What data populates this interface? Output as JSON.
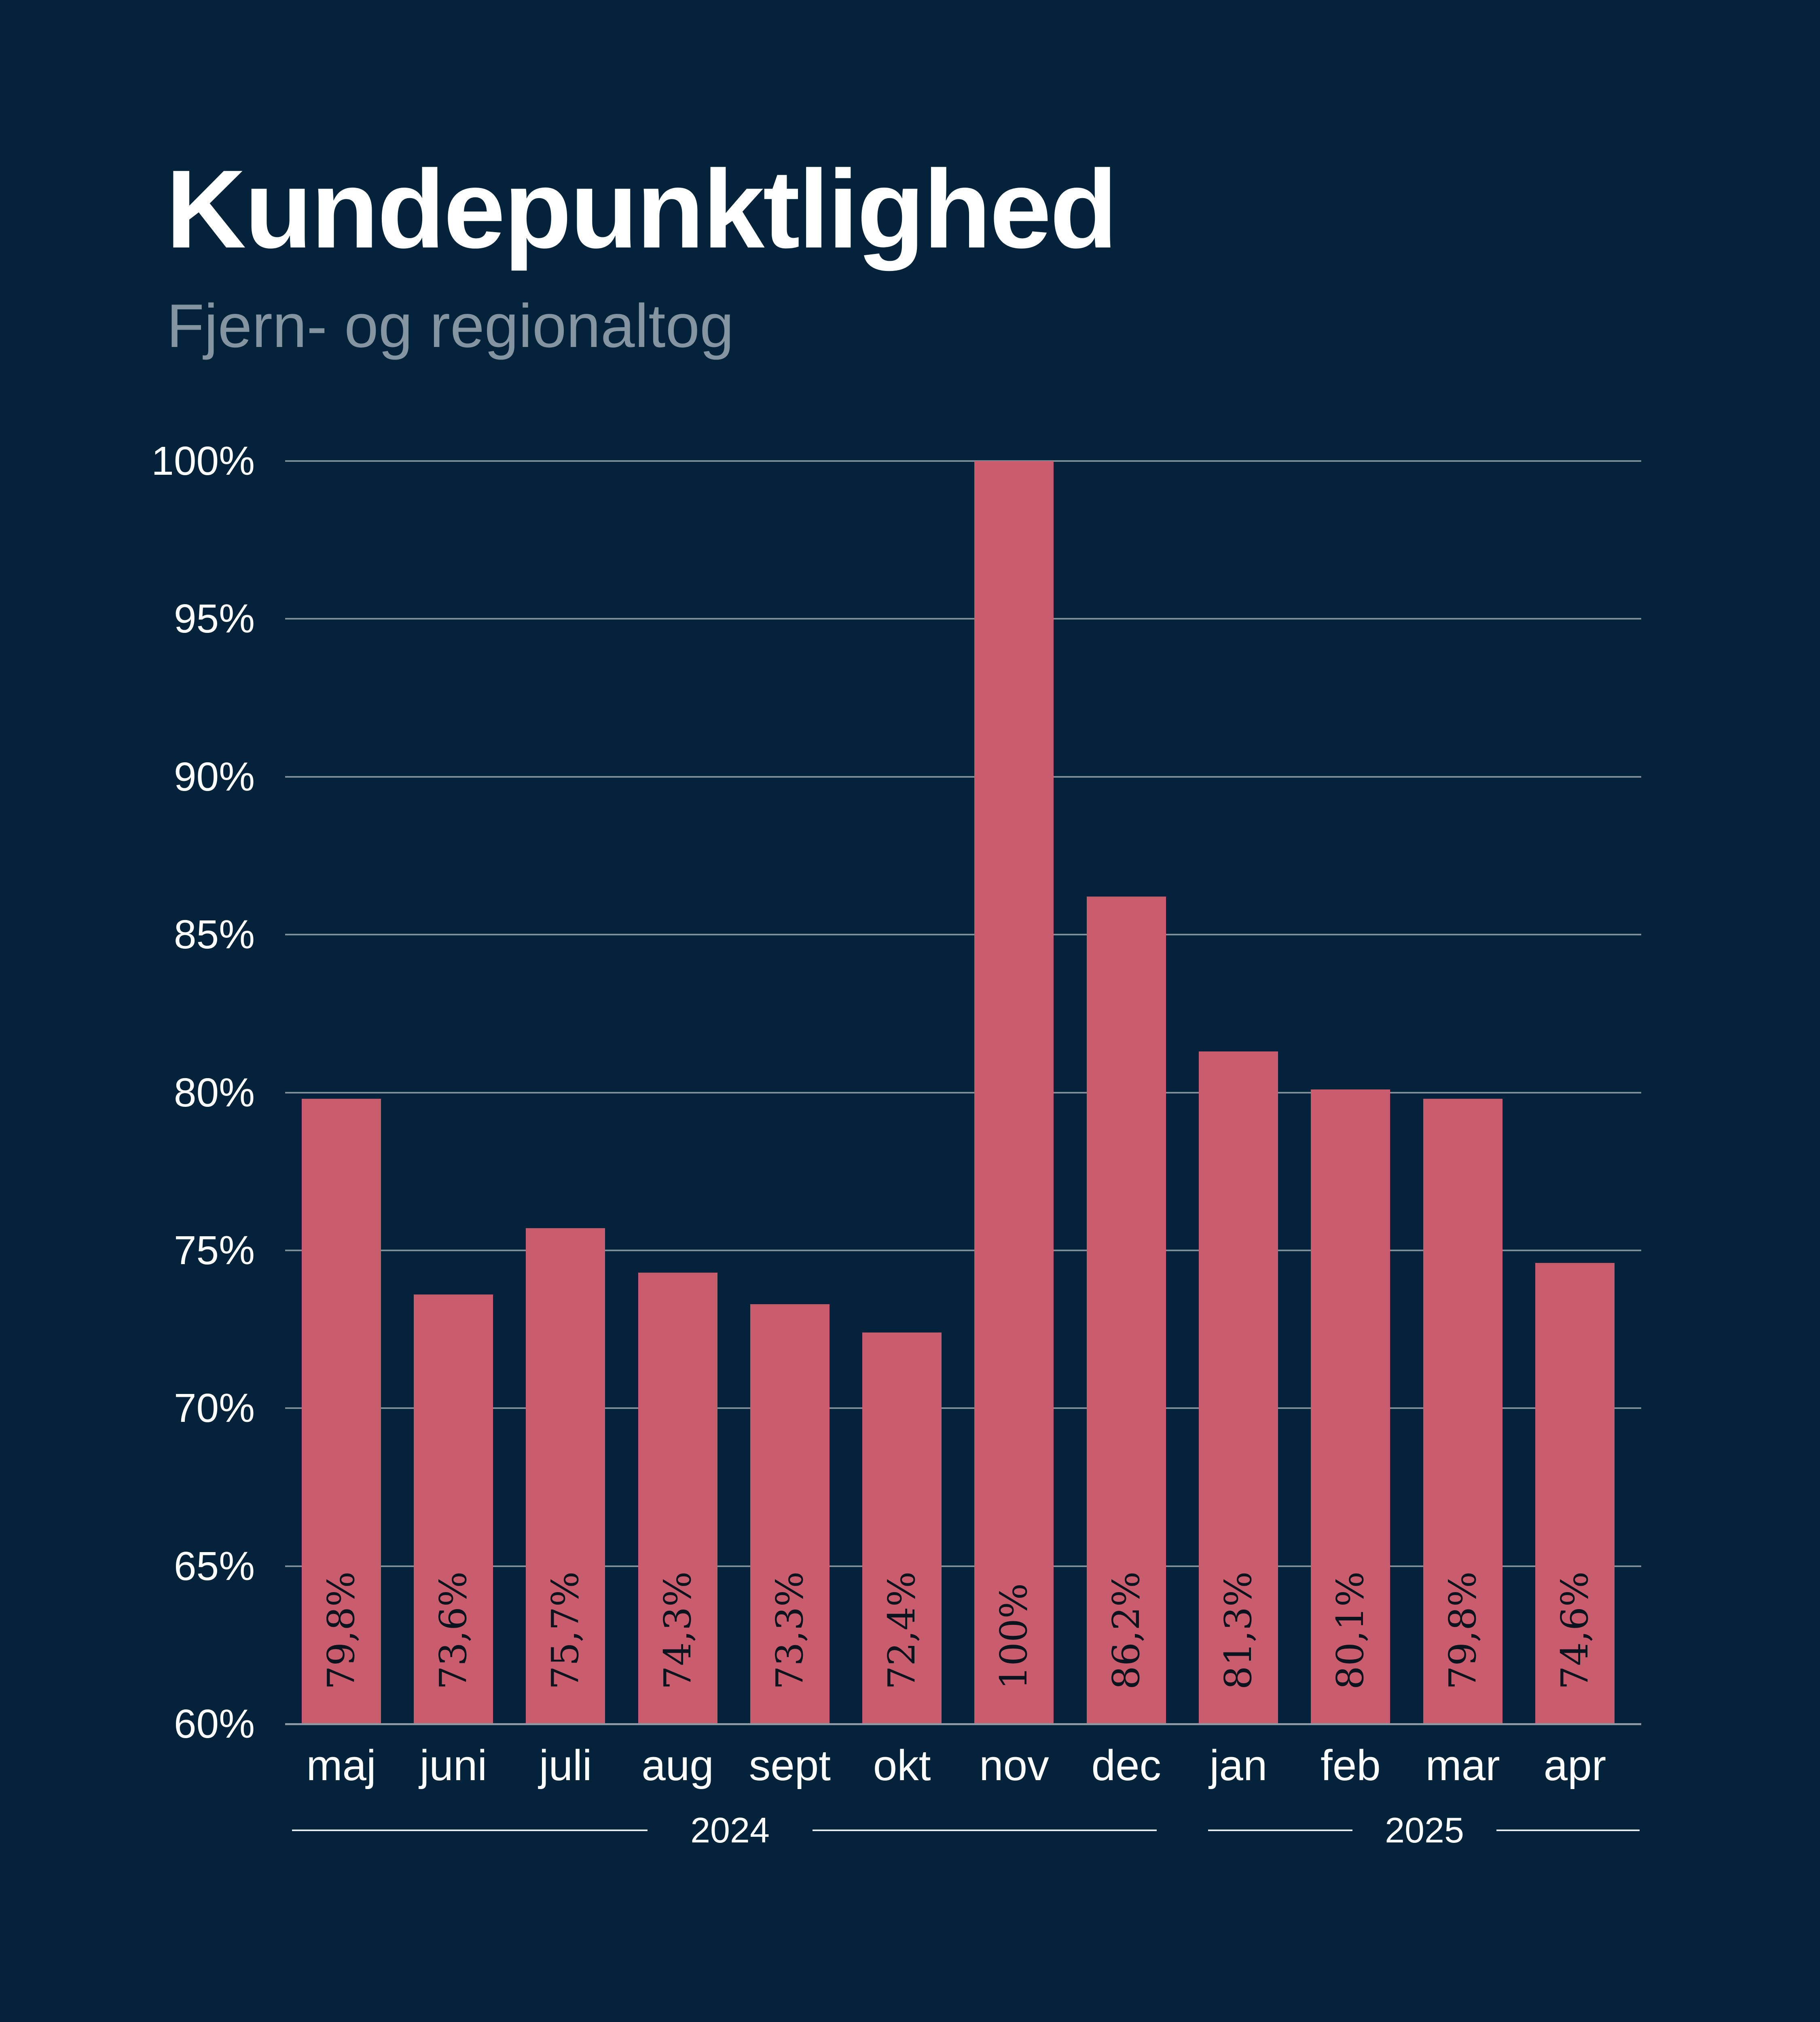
{
  "title": "Kundepunktlighed",
  "subtitle": "Fjern- og regionaltog",
  "colors": {
    "background": "#02233A",
    "bar": "#CA5D6D",
    "grid": "#7E8E99",
    "axis": "#8B97A1",
    "tick_text": "#FFFFFF",
    "subtitle_text": "#8494A1",
    "bar_label_text": "#0A141E",
    "year_line": "#E3EAEF"
  },
  "chart_data": {
    "type": "bar",
    "title": "Kundepunktlighed",
    "subtitle": "Fjern- og regionaltog",
    "categories": [
      "maj",
      "juni",
      "juli",
      "aug",
      "sept",
      "okt",
      "nov",
      "dec",
      "jan",
      "feb",
      "mar",
      "apr"
    ],
    "values": [
      79.8,
      73.6,
      75.7,
      74.3,
      73.3,
      72.4,
      100,
      86.2,
      81.3,
      80.1,
      79.8,
      74.6
    ],
    "value_labels": [
      "79,8%",
      "73,6%",
      "75,7%",
      "74,3%",
      "73,3%",
      "72,4%",
      "100%",
      "86,2%",
      "81,3%",
      "80,1%",
      "79,8%",
      "74,6%"
    ],
    "ylim": [
      60,
      100
    ],
    "yticks": [
      60,
      65,
      70,
      75,
      80,
      85,
      90,
      95,
      100
    ],
    "ytick_labels": [
      "60%",
      "65%",
      "70%",
      "75%",
      "80%",
      "85%",
      "90%",
      "95%",
      "100%"
    ],
    "xlabel": "",
    "ylabel": "",
    "grid": "horizontal gridlines behind bars",
    "legend": "none",
    "year_groups": [
      {
        "label": "2024",
        "start_month": "maj",
        "end_month": "dec",
        "month_count": 8
      },
      {
        "label": "2025",
        "start_month": "jan",
        "end_month": "apr",
        "month_count": 4
      }
    ]
  }
}
